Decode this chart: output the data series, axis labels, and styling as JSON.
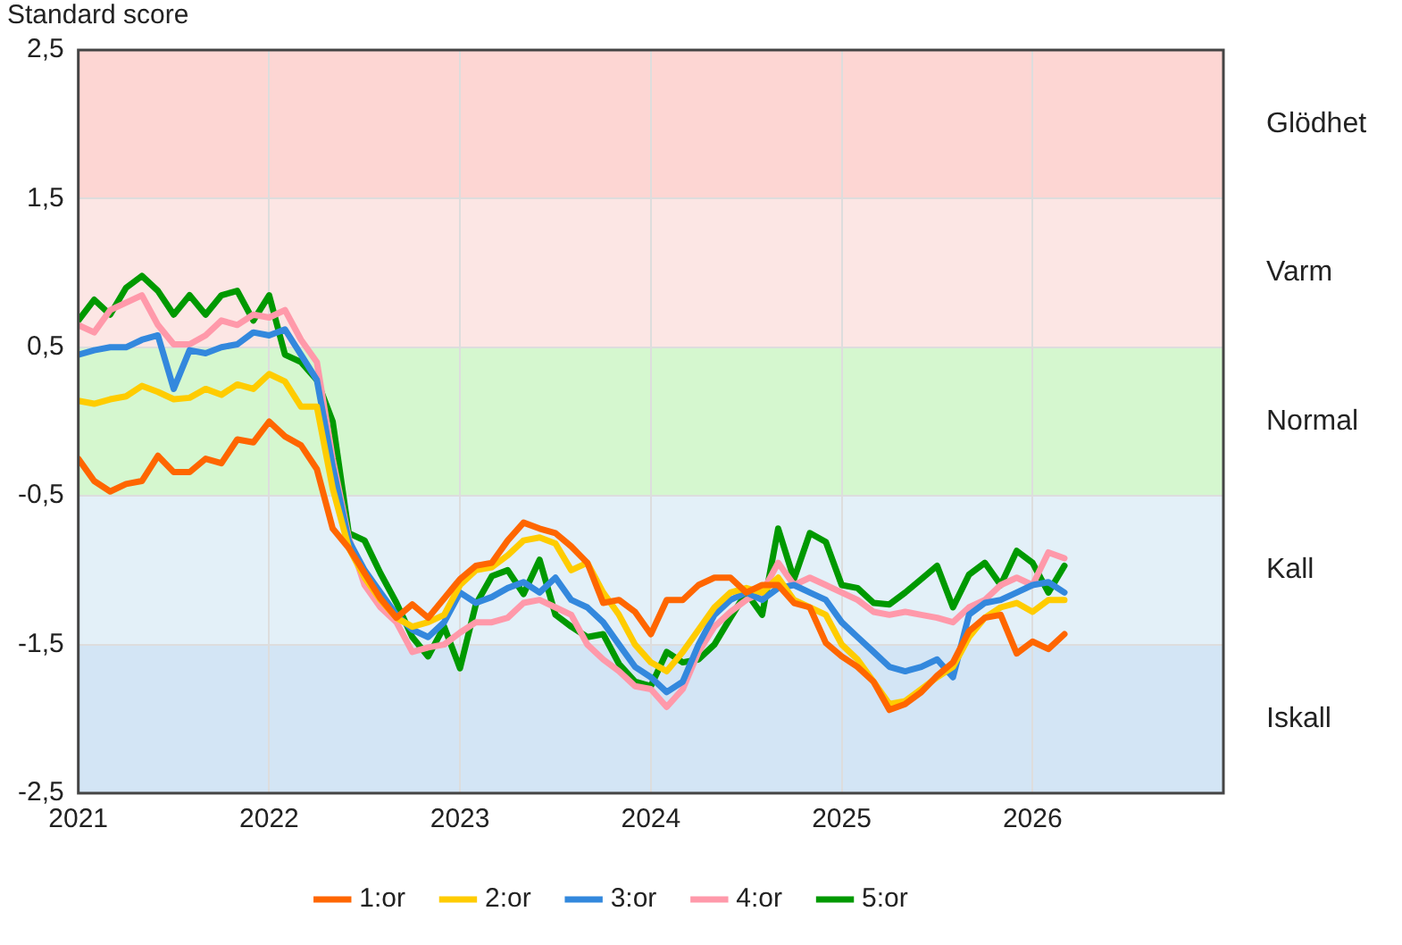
{
  "chart_data": {
    "type": "line",
    "title": "Standard score",
    "x": [
      2021,
      2021.083,
      2021.167,
      2021.25,
      2021.333,
      2021.417,
      2021.5,
      2021.583,
      2021.667,
      2021.75,
      2021.833,
      2021.917,
      2022,
      2022.083,
      2022.167,
      2022.25,
      2022.333,
      2022.417,
      2022.5,
      2022.583,
      2022.667,
      2022.75,
      2022.833,
      2022.917,
      2023,
      2023.083,
      2023.167,
      2023.25,
      2023.333,
      2023.417,
      2023.5,
      2023.583,
      2023.667,
      2023.75,
      2023.833,
      2023.917,
      2024,
      2024.083,
      2024.167,
      2024.25,
      2024.333,
      2024.417,
      2024.5,
      2024.583,
      2024.667,
      2024.75,
      2024.833,
      2024.917,
      2025,
      2025.083,
      2025.167,
      2025.25,
      2025.333,
      2025.417,
      2025.5,
      2025.583,
      2025.667,
      2025.75,
      2025.833,
      2025.917,
      2026,
      2026.083,
      2026.167
    ],
    "series": [
      {
        "name": "1:or",
        "color": "#ff6600",
        "values": [
          -0.25,
          -0.4,
          -0.47,
          -0.42,
          -0.4,
          -0.23,
          -0.34,
          -0.34,
          -0.25,
          -0.28,
          -0.12,
          -0.14,
          0.0,
          -0.1,
          -0.16,
          -0.32,
          -0.72,
          -0.85,
          -1.02,
          -1.19,
          -1.32,
          -1.23,
          -1.32,
          -1.19,
          -1.06,
          -0.97,
          -0.95,
          -0.8,
          -0.68,
          -0.72,
          -0.75,
          -0.84,
          -0.95,
          -1.22,
          -1.2,
          -1.28,
          -1.43,
          -1.2,
          -1.2,
          -1.1,
          -1.05,
          -1.05,
          -1.15,
          -1.1,
          -1.1,
          -1.22,
          -1.25,
          -1.49,
          -1.58,
          -1.65,
          -1.75,
          -1.94,
          -1.9,
          -1.82,
          -1.71,
          -1.62,
          -1.41,
          -1.32,
          -1.3,
          -1.56,
          -1.48,
          -1.53,
          -1.43
        ]
      },
      {
        "name": "2:or",
        "color": "#ffcc00",
        "values": [
          0.14,
          0.12,
          0.15,
          0.17,
          0.24,
          0.2,
          0.15,
          0.16,
          0.22,
          0.18,
          0.25,
          0.22,
          0.32,
          0.27,
          0.1,
          0.1,
          -0.45,
          -0.85,
          -1.05,
          -1.2,
          -1.32,
          -1.38,
          -1.35,
          -1.3,
          -1.1,
          -1.0,
          -0.98,
          -0.9,
          -0.8,
          -0.78,
          -0.82,
          -1.0,
          -0.95,
          -1.15,
          -1.3,
          -1.5,
          -1.62,
          -1.68,
          -1.55,
          -1.4,
          -1.25,
          -1.15,
          -1.12,
          -1.15,
          -1.05,
          -1.2,
          -1.25,
          -1.3,
          -1.5,
          -1.6,
          -1.75,
          -1.9,
          -1.88,
          -1.8,
          -1.72,
          -1.65,
          -1.45,
          -1.32,
          -1.25,
          -1.22,
          -1.28,
          -1.2,
          -1.2
        ]
      },
      {
        "name": "3:or",
        "color": "#3388dd",
        "values": [
          0.45,
          0.48,
          0.5,
          0.5,
          0.55,
          0.58,
          0.22,
          0.48,
          0.46,
          0.5,
          0.52,
          0.6,
          0.58,
          0.62,
          0.45,
          0.28,
          -0.3,
          -0.8,
          -1.0,
          -1.15,
          -1.3,
          -1.4,
          -1.45,
          -1.35,
          -1.15,
          -1.22,
          -1.18,
          -1.12,
          -1.08,
          -1.15,
          -1.05,
          -1.2,
          -1.25,
          -1.35,
          -1.5,
          -1.65,
          -1.72,
          -1.82,
          -1.75,
          -1.5,
          -1.3,
          -1.2,
          -1.15,
          -1.2,
          -1.12,
          -1.1,
          -1.15,
          -1.2,
          -1.35,
          -1.45,
          -1.55,
          -1.65,
          -1.68,
          -1.65,
          -1.6,
          -1.72,
          -1.3,
          -1.22,
          -1.2,
          -1.15,
          -1.1,
          -1.08,
          -1.15
        ]
      },
      {
        "name": "4:or",
        "color": "#ff99aa",
        "values": [
          0.65,
          0.6,
          0.75,
          0.8,
          0.85,
          0.65,
          0.52,
          0.52,
          0.58,
          0.68,
          0.65,
          0.72,
          0.7,
          0.75,
          0.55,
          0.4,
          -0.25,
          -0.78,
          -1.1,
          -1.25,
          -1.35,
          -1.55,
          -1.52,
          -1.5,
          -1.42,
          -1.35,
          -1.35,
          -1.32,
          -1.22,
          -1.2,
          -1.25,
          -1.3,
          -1.5,
          -1.6,
          -1.68,
          -1.78,
          -1.8,
          -1.92,
          -1.8,
          -1.55,
          -1.38,
          -1.28,
          -1.2,
          -1.15,
          -0.95,
          -1.1,
          -1.05,
          -1.1,
          -1.15,
          -1.2,
          -1.28,
          -1.3,
          -1.28,
          -1.3,
          -1.32,
          -1.35,
          -1.25,
          -1.2,
          -1.1,
          -1.05,
          -1.1,
          -0.88,
          -0.92
        ]
      },
      {
        "name": "5:or",
        "color": "#009900",
        "values": [
          0.68,
          0.82,
          0.72,
          0.9,
          0.98,
          0.88,
          0.72,
          0.85,
          0.72,
          0.85,
          0.88,
          0.68,
          0.85,
          0.45,
          0.4,
          0.28,
          0.0,
          -0.75,
          -0.8,
          -1.02,
          -1.22,
          -1.45,
          -1.58,
          -1.38,
          -1.66,
          -1.23,
          -1.04,
          -1.0,
          -1.16,
          -0.93,
          -1.3,
          -1.38,
          -1.45,
          -1.43,
          -1.63,
          -1.75,
          -1.78,
          -1.55,
          -1.62,
          -1.6,
          -1.5,
          -1.32,
          -1.15,
          -1.3,
          -0.72,
          -1.06,
          -0.75,
          -0.81,
          -1.1,
          -1.12,
          -1.22,
          -1.23,
          -1.15,
          -1.06,
          -0.97,
          -1.25,
          -1.03,
          -0.95,
          -1.1,
          -0.87,
          -0.95,
          -1.15,
          -0.97
        ]
      }
    ],
    "xlim": [
      2021,
      2027
    ],
    "xticks": [
      2021,
      2022,
      2023,
      2024,
      2025,
      2026,
      {
        "value": 2027,
        "label": null
      }
    ],
    "ylim": [
      -2.5,
      2.5
    ],
    "yticks": [
      {
        "value": -2.5,
        "label": "-2,5"
      },
      {
        "value": -1.5,
        "label": "-1,5"
      },
      {
        "value": -0.5,
        "label": "-0,5"
      },
      {
        "value": 0.5,
        "label": "0,5"
      },
      {
        "value": 1.5,
        "label": "1,5"
      },
      {
        "value": 2.5,
        "label": "2,5"
      }
    ],
    "bands": [
      {
        "axis": "y",
        "from": 1.5,
        "to": 2.5,
        "label": "Glödhet",
        "color": "#fdd6d3"
      },
      {
        "axis": "y",
        "from": 0.5,
        "to": 1.5,
        "label": "Varm",
        "color": "#fce6e4"
      },
      {
        "axis": "y",
        "from": -0.5,
        "to": 0.5,
        "label": "Normal",
        "color": "#d5f7cf"
      },
      {
        "axis": "y",
        "from": -1.5,
        "to": -0.5,
        "label": "Kall",
        "color": "#e3f0f8"
      },
      {
        "axis": "y",
        "from": -2.5,
        "to": -1.5,
        "label": "Iskall",
        "color": "#d3e5f5"
      }
    ],
    "grid": true,
    "legend": "bottom",
    "marker": "none",
    "line_style": "solid"
  }
}
